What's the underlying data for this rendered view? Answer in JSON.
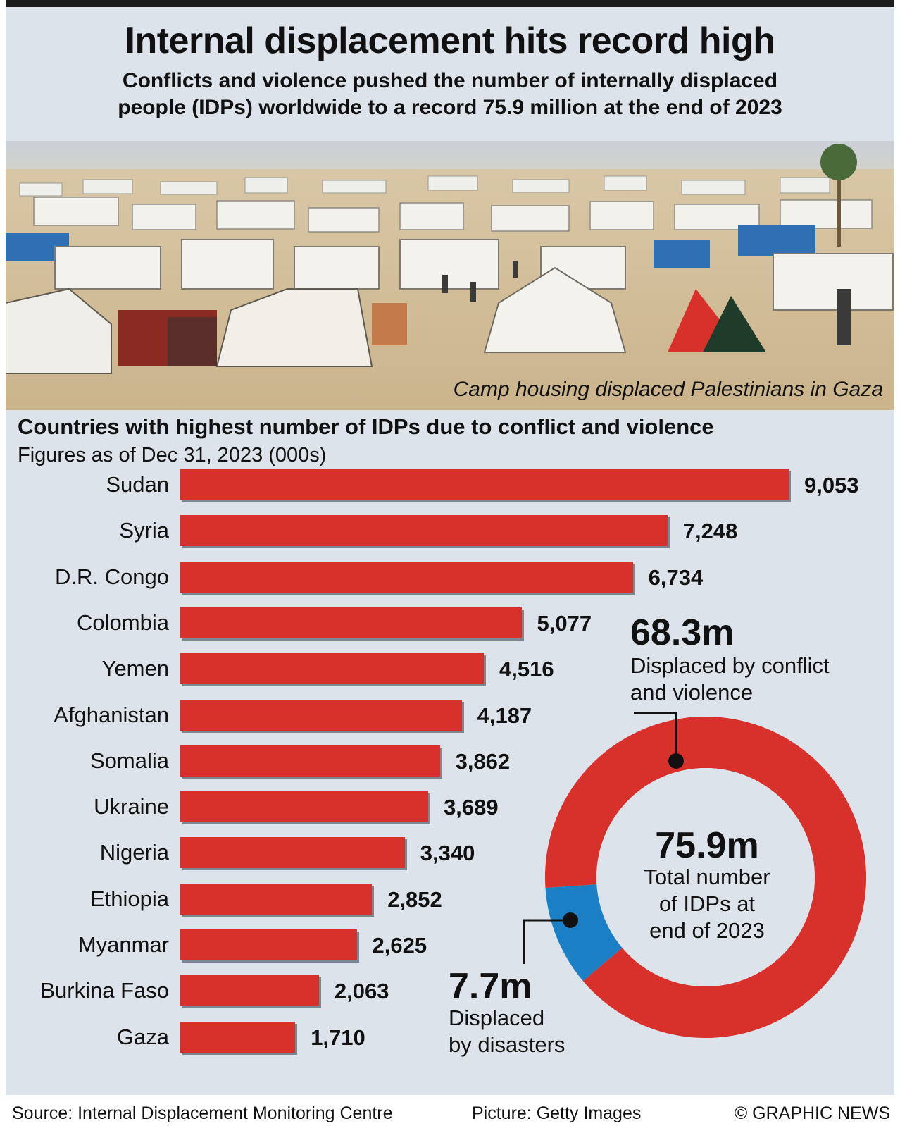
{
  "header": {
    "title": "Internal displacement hits record high",
    "subtitle_line1": "Conflicts and violence pushed the number of internally displaced",
    "subtitle_line2": "people (IDPs) worldwide to a record 75.9 million at the end of 2023"
  },
  "photo": {
    "caption": "Camp housing displaced Palestinians in Gaza"
  },
  "chart_data": [
    {
      "type": "bar",
      "orientation": "horizontal",
      "title": "Countries with highest number of IDPs due to conflict and violence",
      "subtitle": "Figures as of Dec 31, 2023 (000s)",
      "categories": [
        "Sudan",
        "Syria",
        "D.R. Congo",
        "Colombia",
        "Yemen",
        "Afghanistan",
        "Somalia",
        "Ukraine",
        "Nigeria",
        "Ethiopia",
        "Myanmar",
        "Burkina Faso",
        "Gaza"
      ],
      "values": [
        9053,
        7248,
        6734,
        5077,
        4516,
        4187,
        3862,
        3689,
        3340,
        2852,
        2625,
        2063,
        1710
      ],
      "value_labels": [
        "9,053",
        "7,248",
        "6,734",
        "5,077",
        "4,516",
        "4,187",
        "3,862",
        "3,689",
        "3,340",
        "2,852",
        "2,625",
        "2,063",
        "1,710"
      ],
      "color": "#d8302a"
    },
    {
      "type": "pie",
      "donut": true,
      "slices": [
        {
          "value": 68.3,
          "label": "68.3m",
          "color": "#d8302a"
        },
        {
          "value": 7.7,
          "label": "7.7m",
          "color": "#1a7fc4"
        }
      ],
      "center_value": "75.9m"
    }
  ],
  "donut": {
    "center_value": "75.9m",
    "center_line1": "Total number",
    "center_line2": "of IDPs at",
    "center_line3": "end of 2023",
    "conflict_value": "68.3m",
    "conflict_line1": "Displaced by conflict",
    "conflict_line2": "and violence",
    "disaster_value": "7.7m",
    "disaster_line1": "Displaced",
    "disaster_line2": "by disasters"
  },
  "footer": {
    "source": "Source: Internal Displacement Monitoring Centre",
    "picture": "Picture: Getty Images",
    "copyright": "© GRAPHIC NEWS"
  }
}
